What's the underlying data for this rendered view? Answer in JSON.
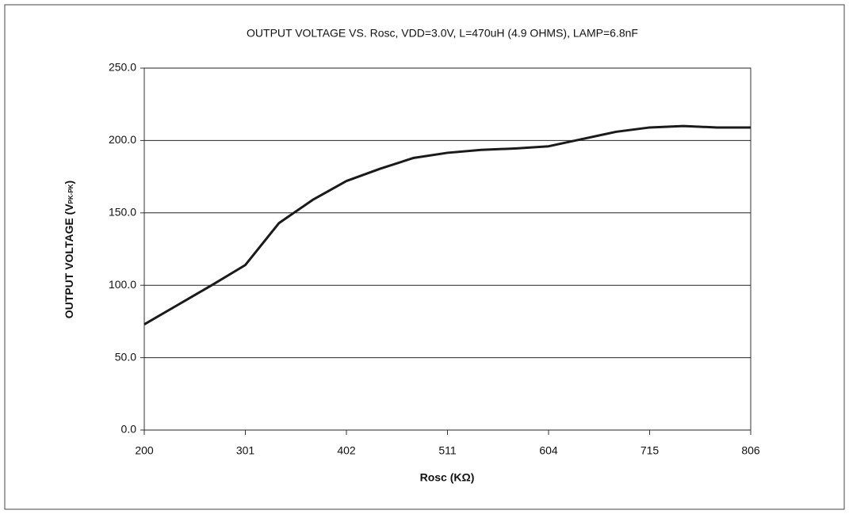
{
  "chart_data": {
    "type": "line",
    "title": "OUTPUT VOLTAGE VS. Rosc, VDD=3.0V, L=470uH (4.9 OHMS), LAMP=6.8nF",
    "x_label": "Rosc (KΩ)",
    "y_label": "OUTPUT VOLTAGE (V",
    "y_label_sub": "PK-PK",
    "y_label_end": ")",
    "categories": [
      "200",
      null,
      null,
      "301",
      null,
      null,
      "402",
      null,
      null,
      "511",
      null,
      null,
      "604",
      null,
      null,
      "715",
      null,
      null,
      "806"
    ],
    "series": [
      {
        "color": "#1a1a1a",
        "values": [
          73,
          86.5,
          100,
          114,
          143,
          159,
          172,
          180.5,
          188,
          191.5,
          193.5,
          194.5,
          196,
          201,
          206,
          209,
          210,
          209,
          209
        ]
      }
    ],
    "ylim": [
      0,
      250
    ],
    "yticks": [
      {
        "value": 0,
        "label": "0.0"
      },
      {
        "value": 50,
        "label": "50.0"
      },
      {
        "value": 100,
        "label": "100.0"
      },
      {
        "value": 150,
        "label": "150.0"
      },
      {
        "value": 200,
        "label": "200.0"
      },
      {
        "value": 250,
        "label": "250.0"
      }
    ],
    "grid": true
  }
}
